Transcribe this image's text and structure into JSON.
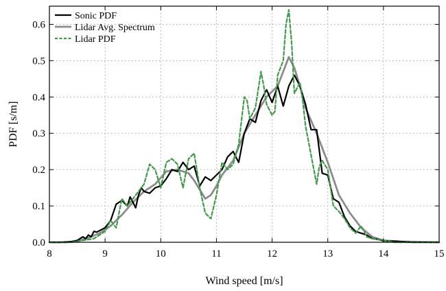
{
  "chart_data": {
    "type": "line",
    "xlabel": "Wind speed [m/s]",
    "ylabel": "PDF [s/m]",
    "xlim": [
      8,
      15
    ],
    "ylim": [
      0,
      0.65
    ],
    "xticks": [
      8,
      9,
      10,
      11,
      12,
      13,
      14,
      15
    ],
    "yticks": [
      0.0,
      0.1,
      0.2,
      0.3,
      0.4,
      0.5,
      0.6
    ],
    "grid": true,
    "legend_position": "top-left",
    "series": [
      {
        "name": "Sonic PDF",
        "color": "#000000",
        "dash": "solid",
        "x": [
          8.0,
          8.2,
          8.4,
          8.5,
          8.6,
          8.65,
          8.7,
          8.75,
          8.8,
          8.85,
          8.9,
          9.0,
          9.1,
          9.2,
          9.3,
          9.4,
          9.45,
          9.5,
          9.55,
          9.6,
          9.65,
          9.7,
          9.8,
          9.9,
          10.0,
          10.1,
          10.2,
          10.3,
          10.4,
          10.5,
          10.6,
          10.7,
          10.8,
          10.9,
          11.0,
          11.1,
          11.2,
          11.3,
          11.4,
          11.5,
          11.6,
          11.65,
          11.7,
          11.8,
          11.9,
          12.0,
          12.1,
          12.2,
          12.3,
          12.4,
          12.5,
          12.6,
          12.7,
          12.8,
          12.9,
          13.0,
          13.1,
          13.2,
          13.3,
          13.4,
          13.5,
          13.6,
          13.7,
          13.8,
          13.9,
          14.0,
          14.1,
          14.2,
          14.5,
          15.0
        ],
        "values": [
          0.0,
          0.0,
          0.002,
          0.005,
          0.015,
          0.01,
          0.02,
          0.015,
          0.03,
          0.028,
          0.032,
          0.04,
          0.06,
          0.105,
          0.115,
          0.1,
          0.125,
          0.11,
          0.095,
          0.13,
          0.15,
          0.14,
          0.135,
          0.15,
          0.155,
          0.175,
          0.2,
          0.195,
          0.22,
          0.2,
          0.21,
          0.155,
          0.18,
          0.17,
          0.185,
          0.2,
          0.235,
          0.25,
          0.22,
          0.3,
          0.34,
          0.335,
          0.33,
          0.39,
          0.42,
          0.385,
          0.43,
          0.375,
          0.43,
          0.46,
          0.43,
          0.38,
          0.31,
          0.31,
          0.19,
          0.185,
          0.12,
          0.11,
          0.07,
          0.045,
          0.03,
          0.025,
          0.02,
          0.01,
          0.008,
          0.004,
          0.003,
          0.003,
          0.0,
          0.0
        ]
      },
      {
        "name": "Lidar Avg. Spectrum",
        "color": "#8c8c8c",
        "dash": "solid",
        "x": [
          8.0,
          8.3,
          8.5,
          8.7,
          8.9,
          9.1,
          9.3,
          9.5,
          9.7,
          9.9,
          10.1,
          10.3,
          10.5,
          10.6,
          10.7,
          10.8,
          10.9,
          11.0,
          11.1,
          11.3,
          11.5,
          11.7,
          11.9,
          12.1,
          12.2,
          12.3,
          12.4,
          12.5,
          12.6,
          12.8,
          13.0,
          13.2,
          13.4,
          13.6,
          13.8,
          14.0,
          14.3,
          15.0
        ],
        "values": [
          0.0,
          0.0,
          0.003,
          0.012,
          0.025,
          0.045,
          0.075,
          0.11,
          0.14,
          0.16,
          0.195,
          0.2,
          0.19,
          0.17,
          0.145,
          0.12,
          0.13,
          0.155,
          0.185,
          0.225,
          0.3,
          0.35,
          0.4,
          0.43,
          0.47,
          0.51,
          0.48,
          0.43,
          0.37,
          0.3,
          0.22,
          0.13,
          0.08,
          0.04,
          0.015,
          0.005,
          0.002,
          0.0
        ]
      },
      {
        "name": "Lidar PDF",
        "color": "#3f9b48",
        "dash": "dashed",
        "x": [
          8.0,
          8.4,
          8.6,
          8.8,
          8.9,
          9.0,
          9.1,
          9.15,
          9.2,
          9.3,
          9.4,
          9.5,
          9.6,
          9.7,
          9.8,
          9.9,
          10.0,
          10.1,
          10.2,
          10.3,
          10.4,
          10.5,
          10.6,
          10.7,
          10.8,
          10.9,
          11.0,
          11.1,
          11.2,
          11.3,
          11.4,
          11.5,
          11.55,
          11.6,
          11.7,
          11.8,
          11.85,
          11.9,
          12.0,
          12.05,
          12.1,
          12.2,
          12.25,
          12.3,
          12.35,
          12.4,
          12.5,
          12.55,
          12.6,
          12.7,
          12.8,
          12.85,
          12.9,
          13.0,
          13.1,
          13.2,
          13.3,
          13.4,
          13.5,
          13.6,
          13.7,
          13.8,
          14.0,
          14.2,
          15.0
        ],
        "values": [
          0.0,
          0.0,
          0.005,
          0.01,
          0.02,
          0.03,
          0.06,
          0.05,
          0.04,
          0.12,
          0.1,
          0.12,
          0.14,
          0.16,
          0.215,
          0.2,
          0.15,
          0.22,
          0.23,
          0.215,
          0.15,
          0.23,
          0.245,
          0.15,
          0.08,
          0.065,
          0.13,
          0.22,
          0.2,
          0.215,
          0.27,
          0.4,
          0.39,
          0.34,
          0.37,
          0.47,
          0.43,
          0.38,
          0.35,
          0.36,
          0.46,
          0.5,
          0.6,
          0.64,
          0.55,
          0.41,
          0.44,
          0.39,
          0.32,
          0.24,
          0.16,
          0.21,
          0.225,
          0.2,
          0.1,
          0.085,
          0.065,
          0.04,
          0.025,
          0.045,
          0.015,
          0.01,
          0.005,
          0.0,
          0.0
        ]
      }
    ]
  }
}
